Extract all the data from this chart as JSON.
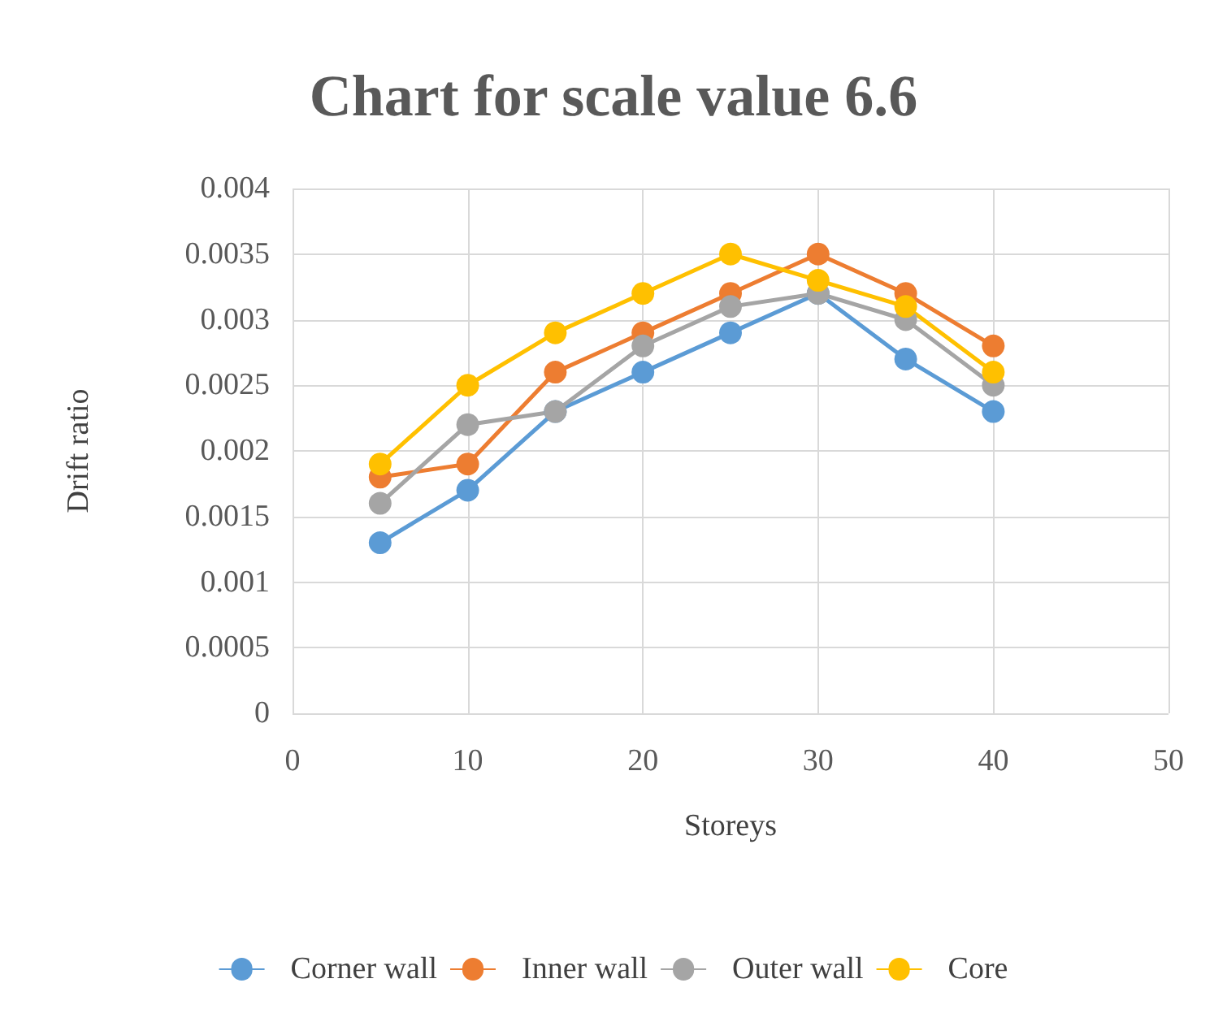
{
  "chart_data": {
    "type": "line",
    "title": "Chart for scale value 6.6",
    "xlabel": "Storeys",
    "ylabel": "Drift ratio",
    "x": [
      5,
      10,
      15,
      20,
      25,
      30,
      35,
      40
    ],
    "series": [
      {
        "name": "Corner wall",
        "color": "#5b9bd5",
        "values": [
          0.0013,
          0.0017,
          0.0023,
          0.0026,
          0.0029,
          0.0032,
          0.0027,
          0.0023
        ]
      },
      {
        "name": "Inner wall",
        "color": "#ed7d31",
        "values": [
          0.0018,
          0.0019,
          0.0026,
          0.0029,
          0.0032,
          0.0035,
          0.0032,
          0.0028
        ]
      },
      {
        "name": "Outer wall",
        "color": "#a5a5a5",
        "values": [
          0.0016,
          0.0022,
          0.0023,
          0.0028,
          0.0031,
          0.0032,
          0.003,
          0.0025
        ]
      },
      {
        "name": "Core",
        "color": "#ffc000",
        "values": [
          0.0019,
          0.0025,
          0.0029,
          0.0032,
          0.0035,
          0.0033,
          0.0031,
          0.0026
        ]
      }
    ],
    "xlim": [
      0,
      50
    ],
    "xticks": [
      0,
      10,
      20,
      30,
      40,
      50
    ],
    "ylim": [
      0,
      0.004
    ],
    "yticks": [
      0,
      0.0005,
      0.001,
      0.0015,
      0.002,
      0.0025,
      0.003,
      0.0035,
      0.004
    ],
    "grid": true,
    "legend": "bottom",
    "marker": "circle",
    "line_style": "solid"
  }
}
